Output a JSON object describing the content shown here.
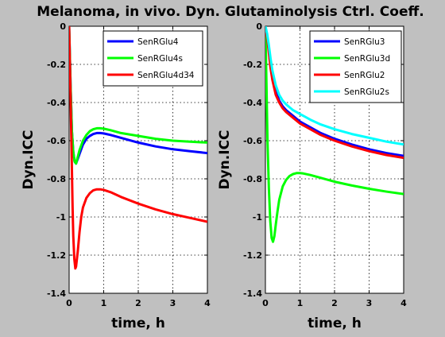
{
  "figure": {
    "title": "Melanoma, in vivo. Dyn. Glutaminolysis Ctrl. Coeff.",
    "background": "#c0c0c0"
  },
  "chart_data": [
    {
      "type": "line",
      "xlabel": "time, h",
      "ylabel": "Dyn.ICC",
      "xlim": [
        0,
        4
      ],
      "ylim": [
        -1.4,
        0
      ],
      "xticks": [
        0,
        1,
        2,
        3,
        4
      ],
      "yticks": [
        -1.4,
        -1.2,
        -1,
        -0.8,
        -0.6,
        -0.4,
        -0.2,
        0
      ],
      "xtick_labels": [
        "0",
        "1",
        "2",
        "3",
        "4"
      ],
      "ytick_labels": [
        "-1.4",
        "-1.2",
        "-1",
        "-0.8",
        "-0.6",
        "-0.4",
        "-0.2",
        "0"
      ],
      "grid": true,
      "legend_position": "top-right",
      "series": [
        {
          "name": "SenRGlu4",
          "color": "#0000ff",
          "x": [
            0.0,
            0.04,
            0.08,
            0.12,
            0.16,
            0.2,
            0.3,
            0.4,
            0.5,
            0.6,
            0.7,
            0.8,
            0.9,
            1.0,
            1.2,
            1.5,
            2.0,
            2.5,
            3.0,
            3.5,
            4.0
          ],
          "y": [
            0.0,
            -0.3,
            -0.55,
            -0.66,
            -0.71,
            -0.72,
            -0.67,
            -0.62,
            -0.59,
            -0.575,
            -0.565,
            -0.56,
            -0.56,
            -0.562,
            -0.57,
            -0.585,
            -0.61,
            -0.63,
            -0.645,
            -0.655,
            -0.665
          ]
        },
        {
          "name": "SenRGlu4s",
          "color": "#00ff00",
          "x": [
            0.0,
            0.04,
            0.08,
            0.12,
            0.16,
            0.2,
            0.3,
            0.4,
            0.5,
            0.6,
            0.7,
            0.8,
            0.9,
            1.0,
            1.2,
            1.5,
            2.0,
            2.5,
            3.0,
            3.5,
            4.0
          ],
          "y": [
            0.0,
            -0.3,
            -0.55,
            -0.66,
            -0.71,
            -0.72,
            -0.65,
            -0.6,
            -0.57,
            -0.55,
            -0.54,
            -0.535,
            -0.535,
            -0.537,
            -0.545,
            -0.56,
            -0.575,
            -0.59,
            -0.6,
            -0.605,
            -0.61
          ]
        },
        {
          "name": "SenRGlu4d34",
          "color": "#ff0000",
          "x": [
            0.0,
            0.04,
            0.08,
            0.1,
            0.12,
            0.15,
            0.18,
            0.2,
            0.25,
            0.3,
            0.35,
            0.4,
            0.5,
            0.6,
            0.7,
            0.8,
            0.9,
            1.0,
            1.2,
            1.5,
            2.0,
            2.5,
            3.0,
            3.5,
            4.0
          ],
          "y": [
            0.0,
            -0.35,
            -0.75,
            -0.95,
            -1.1,
            -1.22,
            -1.27,
            -1.26,
            -1.18,
            -1.08,
            -1.0,
            -0.95,
            -0.9,
            -0.875,
            -0.86,
            -0.855,
            -0.855,
            -0.858,
            -0.87,
            -0.895,
            -0.93,
            -0.96,
            -0.985,
            -1.005,
            -1.025
          ]
        }
      ]
    },
    {
      "type": "line",
      "xlabel": "time, h",
      "ylabel": "Dyn.ICC",
      "xlim": [
        0,
        4
      ],
      "ylim": [
        -1.4,
        0
      ],
      "xticks": [
        0,
        1,
        2,
        3,
        4
      ],
      "yticks": [
        -1.4,
        -1.2,
        -1,
        -0.8,
        -0.6,
        -0.4,
        -0.2,
        0
      ],
      "xtick_labels": [
        "0",
        "1",
        "2",
        "3",
        "4"
      ],
      "ytick_labels": [
        "-1.4",
        "-1.2",
        "-1",
        "-0.8",
        "-0.6",
        "-0.4",
        "-0.2",
        "0"
      ],
      "grid": true,
      "legend_position": "top-right",
      "series": [
        {
          "name": "SenRGlu3",
          "color": "#0000ff",
          "x": [
            0.0,
            0.05,
            0.1,
            0.15,
            0.2,
            0.3,
            0.4,
            0.5,
            0.6,
            0.8,
            1.0,
            1.3,
            1.6,
            2.0,
            2.5,
            3.0,
            3.5,
            4.0
          ],
          "y": [
            0.0,
            -0.05,
            -0.12,
            -0.2,
            -0.26,
            -0.34,
            -0.39,
            -0.42,
            -0.44,
            -0.47,
            -0.5,
            -0.53,
            -0.56,
            -0.59,
            -0.62,
            -0.645,
            -0.665,
            -0.68
          ]
        },
        {
          "name": "SenRGlu3d",
          "color": "#00ff00",
          "x": [
            0.0,
            0.03,
            0.06,
            0.1,
            0.14,
            0.18,
            0.22,
            0.26,
            0.3,
            0.35,
            0.4,
            0.5,
            0.6,
            0.7,
            0.8,
            0.9,
            1.0,
            1.1,
            1.3,
            1.5,
            2.0,
            2.5,
            3.0,
            3.5,
            4.0
          ],
          "y": [
            0.0,
            -0.3,
            -0.6,
            -0.85,
            -1.02,
            -1.11,
            -1.13,
            -1.1,
            -1.04,
            -0.97,
            -0.91,
            -0.84,
            -0.805,
            -0.785,
            -0.775,
            -0.77,
            -0.77,
            -0.772,
            -0.78,
            -0.79,
            -0.815,
            -0.835,
            -0.852,
            -0.867,
            -0.88
          ]
        },
        {
          "name": "SenRGlu2",
          "color": "#ff0000",
          "x": [
            0.0,
            0.05,
            0.1,
            0.15,
            0.2,
            0.3,
            0.4,
            0.5,
            0.6,
            0.8,
            1.0,
            1.3,
            1.6,
            2.0,
            2.5,
            3.0,
            3.5,
            4.0
          ],
          "y": [
            0.0,
            -0.06,
            -0.14,
            -0.22,
            -0.28,
            -0.36,
            -0.4,
            -0.43,
            -0.45,
            -0.48,
            -0.51,
            -0.54,
            -0.57,
            -0.6,
            -0.63,
            -0.655,
            -0.675,
            -0.69
          ]
        },
        {
          "name": "SenRGlu2s",
          "color": "#00ffff",
          "x": [
            0.0,
            0.05,
            0.1,
            0.15,
            0.2,
            0.3,
            0.4,
            0.5,
            0.6,
            0.8,
            1.0,
            1.3,
            1.6,
            2.0,
            2.5,
            3.0,
            3.5,
            4.0
          ],
          "y": [
            0.0,
            -0.04,
            -0.1,
            -0.17,
            -0.23,
            -0.31,
            -0.36,
            -0.39,
            -0.41,
            -0.44,
            -0.46,
            -0.49,
            -0.515,
            -0.54,
            -0.565,
            -0.585,
            -0.605,
            -0.62
          ]
        }
      ]
    }
  ]
}
